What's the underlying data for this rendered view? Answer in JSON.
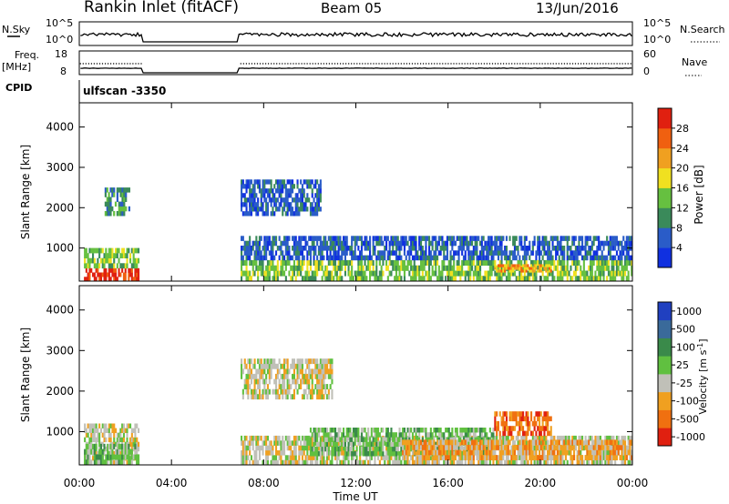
{
  "header": {
    "title": "Rankin Inlet (fitACF)",
    "beam": "Beam 05",
    "date": "13/Jun/2016"
  },
  "params": {
    "nsky_label": "N.Sky",
    "nsearch_label": "N.Search",
    "freq_label": "Freq.",
    "freq_unit": "[MHz]",
    "nave_label": "Nave",
    "cpid_label": "CPID",
    "cpid_value": "ulfscan -3350",
    "noise_ticks": [
      "10^5",
      "10^0"
    ],
    "freq_ticks": [
      "18",
      "8"
    ],
    "nave_ticks": [
      "60",
      "0"
    ]
  },
  "colors": {
    "power": [
      "#1030e0",
      "#2a5cc8",
      "#3a8a5a",
      "#66c040",
      "#f0e020",
      "#f0a020",
      "#f06010",
      "#e02010"
    ],
    "velocity": [
      "#2040c0",
      "#3a6a9a",
      "#3a8a4a",
      "#60c040",
      "#c0c0b8",
      "#f0a020",
      "#f07010",
      "#e02010"
    ]
  },
  "chart_data": [
    {
      "type": "heatmap",
      "name": "power",
      "ylabel": "Slant Range [km]",
      "xlabel": "",
      "yticks": [
        "1000",
        "2000",
        "3000",
        "4000"
      ],
      "ylim": [
        180,
        4600
      ],
      "xlim_hours": [
        0,
        24
      ],
      "colorbar": {
        "label": "Power [dB]",
        "ticks": [
          "4",
          "8",
          "12",
          "16",
          "20",
          "24",
          "28"
        ],
        "range": [
          0,
          32
        ]
      },
      "data_gaps_ut": [
        [
          "02:45",
          "06:55"
        ]
      ],
      "regions": [
        {
          "t": [
            0.2,
            2.6
          ],
          "r": [
            180,
            500
          ],
          "level": 7
        },
        {
          "t": [
            0.2,
            2.6
          ],
          "r": [
            500,
            1000
          ],
          "level": 3
        },
        {
          "t": [
            1.1,
            2.2
          ],
          "r": [
            1800,
            2500
          ],
          "level": 2
        },
        {
          "t": [
            7.0,
            24.0
          ],
          "r": [
            180,
            700
          ],
          "level": 3
        },
        {
          "t": [
            7.0,
            24.0
          ],
          "r": [
            700,
            1300
          ],
          "level": 1
        },
        {
          "t": [
            7.0,
            10.5
          ],
          "r": [
            1800,
            2700
          ],
          "level": 1
        },
        {
          "t": [
            18.0,
            20.5
          ],
          "r": [
            400,
            600
          ],
          "level": 5
        }
      ]
    },
    {
      "type": "heatmap",
      "name": "velocity",
      "ylabel": "Slant Range [km]",
      "xlabel": "Time UT",
      "xticks": [
        "00:00",
        "04:00",
        "08:00",
        "12:00",
        "16:00",
        "20:00",
        "00:00"
      ],
      "yticks": [
        "1000",
        "2000",
        "3000",
        "4000"
      ],
      "ylim": [
        180,
        4600
      ],
      "xlim_hours": [
        0,
        24
      ],
      "colorbar": {
        "label": "Velocity [m s-1]",
        "ticks": [
          "1000",
          "500",
          "100",
          "25",
          "-25",
          "-100",
          "-500",
          "-1000"
        ]
      },
      "data_gaps_ut": [
        [
          "02:45",
          "06:55"
        ]
      ],
      "regions": [
        {
          "t": [
            0.2,
            2.6
          ],
          "r": [
            180,
            1200
          ],
          "level": 4
        },
        {
          "t": [
            0.2,
            2.6
          ],
          "r": [
            180,
            700
          ],
          "level": 3
        },
        {
          "t": [
            7.0,
            11.0
          ],
          "r": [
            1800,
            2800
          ],
          "level": 4
        },
        {
          "t": [
            7.0,
            24.0
          ],
          "r": [
            180,
            900
          ],
          "level": 4
        },
        {
          "t": [
            10.0,
            18.0
          ],
          "r": [
            400,
            1100
          ],
          "level": 3
        },
        {
          "t": [
            14.0,
            24.0
          ],
          "r": [
            300,
            800
          ],
          "level": 5
        },
        {
          "t": [
            18.0,
            20.5
          ],
          "r": [
            900,
            1500
          ],
          "level": 6
        }
      ]
    }
  ]
}
